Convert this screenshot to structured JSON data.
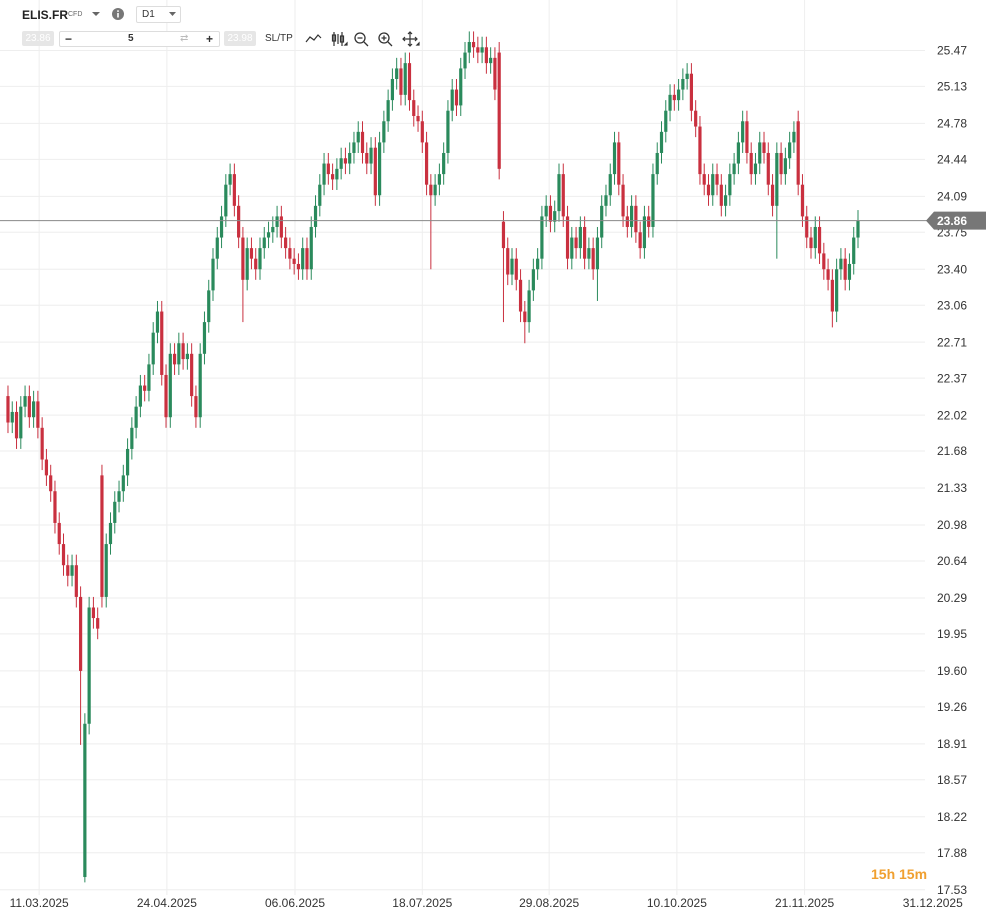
{
  "toolbar": {
    "symbol": "ELIS.FR",
    "kind": "CFD",
    "interval": "D1",
    "sell_price": "23.86",
    "volume": "5",
    "buy_price": "23.98",
    "sltp": "SL/TP"
  },
  "timer": "15h 15m",
  "chart_data": {
    "type": "candlestick",
    "up_color": "#2a8a5c",
    "down_color": "#c9303f",
    "grid": true,
    "last_price": 23.86,
    "last_price_label": "23.86",
    "xlim": [
      -1.4,
      218.2
    ],
    "xticks": [
      {
        "value": 7.3,
        "label": "11.03.2025"
      },
      {
        "value": 37.2,
        "label": "24.04.2025"
      },
      {
        "value": 67.2,
        "label": "06.06.2025"
      },
      {
        "value": 97,
        "label": "18.07.2025"
      },
      {
        "value": 126.7,
        "label": "29.08.2025"
      },
      {
        "value": 156.6,
        "label": "10.10.2025"
      },
      {
        "value": 186.5,
        "label": "21.11.2025"
      },
      {
        "value": 216.5,
        "label": "31.12.2025"
      }
    ],
    "ylim": [
      17.48,
      25.9
    ],
    "yticks": [
      25.47,
      25.13,
      24.78,
      24.44,
      24.09,
      23.75,
      {
        "value": 23.4,
        "label": "23.40"
      },
      23.06,
      22.71,
      22.37,
      22.02,
      21.68,
      21.33,
      20.98,
      20.64,
      20.29,
      19.95,
      {
        "value": 19.6,
        "label": "19.60"
      },
      19.26,
      18.91,
      18.57,
      18.22,
      17.88,
      17.53
    ],
    "open": [
      22.2,
      21.95,
      22.05,
      21.8,
      22.1,
      22.2,
      22.0,
      22.15,
      21.9,
      21.6,
      21.45,
      21.3,
      21.0,
      20.8,
      20.6,
      20.5,
      20.6,
      20.3,
      17.65,
      19.1,
      20.2,
      20.1,
      21.45,
      20.3,
      20.8,
      21.0,
      21.2,
      21.3,
      21.45,
      21.7,
      21.9,
      22.1,
      22.3,
      22.25,
      22.5,
      22.8,
      23.0,
      22.4,
      22.0,
      22.6,
      22.5,
      22.7,
      22.55,
      22.6,
      22.2,
      22.0,
      22.6,
      22.9,
      23.2,
      23.5,
      23.7,
      23.9,
      24.2,
      24.3,
      24.0,
      23.7,
      23.3,
      23.6,
      23.5,
      23.4,
      23.6,
      23.7,
      23.75,
      23.8,
      23.9,
      23.7,
      23.6,
      23.5,
      23.45,
      23.4,
      23.6,
      23.4,
      23.8,
      24.0,
      24.2,
      24.4,
      24.3,
      24.25,
      24.35,
      24.45,
      24.4,
      24.5,
      24.6,
      24.7,
      24.5,
      24.4,
      24.55,
      24.1,
      24.6,
      24.8,
      25.0,
      25.2,
      25.3,
      25.05,
      25.35,
      25.0,
      24.85,
      24.8,
      24.6,
      24.2,
      24.1,
      24.2,
      24.3,
      24.5,
      24.9,
      25.1,
      24.95,
      25.3,
      25.45,
      25.55,
      25.5,
      25.45,
      25.5,
      25.35,
      25.4,
      25.45,
      23.85,
      23.6,
      23.35,
      23.5,
      23.3,
      23.0,
      22.9,
      23.2,
      23.4,
      23.5,
      23.9,
      24.0,
      23.85,
      23.95,
      24.3,
      23.9,
      23.5,
      23.7,
      23.6,
      23.8,
      23.5,
      23.6,
      23.4,
      23.7,
      24.0,
      24.1,
      24.3,
      24.6,
      24.2,
      23.9,
      23.8,
      24.0,
      23.75,
      23.6,
      23.9,
      23.8,
      24.3,
      24.5,
      24.7,
      24.9,
      25.05,
      25.0,
      25.1,
      25.2,
      25.25,
      24.9,
      24.75,
      24.3,
      24.2,
      24.1,
      24.3,
      24.2,
      24.0,
      24.1,
      24.3,
      24.4,
      24.6,
      24.8,
      24.5,
      24.3,
      24.4,
      24.6,
      24.5,
      24.2,
      24.0,
      24.5,
      24.3,
      24.45,
      24.6,
      24.8,
      24.2,
      23.9,
      23.7,
      23.6,
      23.8,
      23.55,
      23.4,
      23.3,
      23.0,
      23.4,
      23.5,
      23.3,
      23.45,
      23.7
    ],
    "high": [
      22.3,
      22.15,
      22.15,
      22.2,
      22.3,
      22.3,
      22.25,
      22.25,
      22.0,
      21.7,
      21.55,
      21.4,
      21.1,
      20.9,
      20.7,
      20.7,
      20.7,
      20.4,
      19.2,
      20.3,
      20.3,
      20.2,
      21.55,
      20.9,
      21.1,
      21.3,
      21.4,
      21.55,
      21.8,
      22.0,
      22.2,
      22.4,
      22.4,
      22.6,
      22.9,
      23.1,
      23.1,
      22.5,
      22.7,
      22.7,
      22.8,
      22.8,
      22.7,
      22.7,
      22.3,
      22.7,
      23.0,
      23.3,
      23.6,
      23.8,
      24.0,
      24.3,
      24.4,
      24.4,
      24.1,
      23.8,
      23.7,
      23.7,
      23.6,
      23.7,
      23.8,
      23.85,
      23.9,
      24.0,
      24.0,
      23.8,
      23.7,
      23.6,
      23.55,
      23.7,
      23.7,
      23.9,
      24.1,
      24.3,
      24.5,
      24.5,
      24.4,
      24.45,
      24.55,
      24.55,
      24.6,
      24.7,
      24.8,
      24.8,
      24.6,
      24.65,
      24.65,
      24.7,
      24.9,
      25.1,
      25.3,
      25.4,
      25.4,
      25.45,
      25.45,
      25.1,
      24.95,
      24.9,
      24.7,
      24.3,
      24.3,
      24.4,
      24.6,
      25.0,
      25.2,
      25.2,
      25.4,
      25.55,
      25.65,
      25.65,
      25.6,
      25.6,
      25.6,
      25.5,
      25.5,
      25.55,
      23.95,
      23.7,
      23.6,
      23.6,
      23.4,
      23.1,
      23.3,
      23.5,
      23.6,
      24.0,
      24.1,
      24.1,
      24.05,
      24.4,
      24.4,
      24.0,
      23.8,
      23.8,
      23.9,
      23.9,
      23.7,
      23.7,
      23.8,
      24.1,
      24.2,
      24.4,
      24.7,
      24.7,
      24.3,
      24.0,
      24.1,
      24.1,
      23.85,
      24.0,
      24.0,
      24.4,
      24.6,
      24.8,
      25.0,
      25.15,
      25.15,
      25.2,
      25.3,
      25.35,
      25.35,
      25.0,
      24.85,
      24.4,
      24.3,
      24.4,
      24.4,
      24.3,
      24.2,
      24.4,
      24.5,
      24.7,
      24.9,
      24.9,
      24.6,
      24.5,
      24.7,
      24.7,
      24.6,
      24.3,
      24.6,
      24.6,
      24.55,
      24.7,
      24.8,
      24.9,
      24.3,
      24.0,
      23.8,
      23.9,
      23.9,
      23.65,
      23.5,
      23.4,
      23.5,
      23.6,
      23.6,
      23.55,
      23.8,
      23.96
    ],
    "low": [
      21.85,
      21.85,
      21.7,
      21.7,
      22.0,
      21.9,
      21.9,
      21.8,
      21.5,
      21.35,
      21.2,
      20.9,
      20.7,
      20.5,
      20.4,
      20.4,
      20.2,
      18.9,
      17.6,
      19.0,
      20.0,
      19.9,
      20.2,
      20.2,
      20.7,
      20.9,
      21.1,
      21.2,
      21.35,
      21.6,
      21.8,
      22.0,
      22.15,
      22.15,
      22.4,
      22.7,
      22.3,
      21.9,
      21.9,
      22.4,
      22.4,
      22.45,
      22.45,
      22.1,
      21.9,
      21.9,
      22.5,
      22.8,
      23.1,
      23.4,
      23.6,
      23.8,
      24.1,
      23.9,
      23.6,
      22.9,
      23.2,
      23.4,
      23.3,
      23.3,
      23.5,
      23.6,
      23.65,
      23.7,
      23.6,
      23.5,
      23.4,
      23.35,
      23.3,
      23.3,
      23.3,
      23.3,
      23.7,
      23.9,
      24.1,
      24.2,
      24.15,
      24.15,
      24.25,
      24.3,
      24.3,
      24.4,
      24.5,
      24.4,
      24.3,
      24.3,
      24.0,
      24.0,
      24.5,
      24.7,
      24.9,
      25.1,
      24.95,
      24.95,
      24.9,
      24.75,
      24.7,
      24.5,
      24.1,
      23.4,
      24.0,
      24.1,
      24.2,
      24.4,
      24.8,
      24.85,
      24.85,
      25.2,
      25.35,
      25.4,
      25.35,
      25.35,
      25.25,
      25.25,
      25.0,
      24.25,
      22.9,
      23.25,
      23.25,
      23.2,
      22.9,
      22.7,
      22.8,
      23.1,
      23.3,
      23.4,
      23.8,
      23.75,
      23.75,
      23.85,
      23.8,
      23.4,
      23.4,
      23.5,
      23.5,
      23.4,
      23.4,
      23.3,
      23.1,
      23.6,
      23.9,
      24.0,
      24.2,
      24.1,
      23.8,
      23.7,
      23.7,
      23.65,
      23.5,
      23.5,
      23.7,
      23.7,
      24.2,
      24.4,
      24.6,
      24.8,
      24.9,
      24.9,
      25.0,
      25.1,
      24.8,
      24.65,
      24.2,
      24.1,
      24.0,
      24.0,
      24.1,
      23.9,
      23.9,
      24.0,
      24.2,
      24.3,
      24.5,
      24.4,
      24.2,
      24.2,
      24.3,
      24.4,
      24.1,
      23.9,
      23.5,
      24.2,
      24.2,
      24.35,
      24.5,
      24.1,
      23.8,
      23.6,
      23.5,
      23.5,
      23.45,
      23.3,
      23.2,
      22.85,
      22.9,
      23.3,
      23.2,
      23.2,
      23.35,
      23.6
    ],
    "close": [
      21.95,
      22.05,
      21.8,
      22.1,
      22.2,
      22.0,
      22.15,
      21.9,
      21.6,
      21.45,
      21.3,
      21.0,
      20.8,
      20.6,
      20.5,
      20.6,
      20.3,
      19.6,
      19.1,
      20.2,
      20.1,
      20.0,
      20.3,
      20.8,
      21.0,
      21.2,
      21.3,
      21.45,
      21.7,
      21.9,
      22.1,
      22.3,
      22.25,
      22.5,
      22.8,
      23.0,
      22.4,
      22.0,
      22.6,
      22.5,
      22.7,
      22.55,
      22.6,
      22.2,
      22.0,
      22.6,
      22.9,
      23.2,
      23.5,
      23.7,
      23.9,
      24.2,
      24.3,
      24.0,
      23.7,
      23.3,
      23.6,
      23.5,
      23.4,
      23.6,
      23.7,
      23.75,
      23.8,
      23.9,
      23.7,
      23.6,
      23.5,
      23.45,
      23.4,
      23.6,
      23.4,
      23.8,
      24.0,
      24.2,
      24.4,
      24.3,
      24.25,
      24.35,
      24.45,
      24.4,
      24.5,
      24.6,
      24.7,
      24.5,
      24.4,
      24.55,
      24.1,
      24.6,
      24.8,
      25.0,
      25.2,
      25.3,
      25.05,
      25.35,
      25.0,
      24.85,
      24.8,
      24.6,
      24.2,
      24.1,
      24.2,
      24.3,
      24.5,
      24.9,
      25.1,
      24.95,
      25.3,
      25.45,
      25.55,
      25.5,
      25.45,
      25.5,
      25.35,
      25.4,
      25.1,
      24.35,
      23.6,
      23.35,
      23.5,
      23.3,
      23.0,
      22.9,
      23.2,
      23.4,
      23.5,
      23.9,
      24.0,
      23.85,
      23.95,
      24.3,
      23.9,
      23.5,
      23.7,
      23.6,
      23.8,
      23.5,
      23.6,
      23.4,
      23.7,
      24.0,
      24.1,
      24.3,
      24.6,
      24.2,
      23.9,
      23.8,
      24.0,
      23.75,
      23.6,
      23.9,
      23.8,
      24.3,
      24.5,
      24.7,
      24.9,
      25.05,
      25.0,
      25.1,
      25.2,
      25.25,
      24.9,
      24.75,
      24.3,
      24.2,
      24.1,
      24.3,
      24.2,
      24.0,
      24.1,
      24.3,
      24.4,
      24.6,
      24.8,
      24.5,
      24.3,
      24.4,
      24.6,
      24.5,
      24.2,
      24.0,
      24.5,
      24.3,
      24.45,
      24.6,
      24.7,
      24.2,
      23.9,
      23.7,
      23.6,
      23.8,
      23.55,
      23.4,
      23.3,
      23.0,
      23.4,
      23.5,
      23.3,
      23.45,
      23.7,
      23.86
    ]
  }
}
